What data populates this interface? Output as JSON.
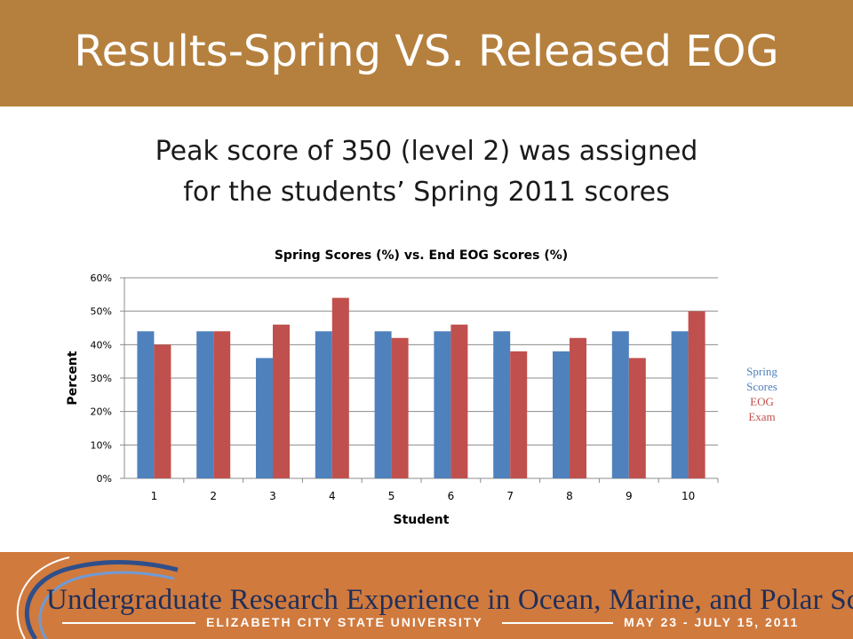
{
  "slide": {
    "title": "Results-Spring VS. Released EOG",
    "subtitle_line1": "Peak score of 350 (level 2) was assigned",
    "subtitle_line2": "for the students’ Spring 2011 scores"
  },
  "legend": {
    "series1_line1": "Spring",
    "series1_line2": "Scores",
    "series2_line1": "EOG",
    "series2_line2": "Exam"
  },
  "footer": {
    "program": "Undergraduate Research Experience in Ocean, Marine, and Polar Science",
    "university": "ELIZABETH CITY STATE UNIVERSITY",
    "dates": "MAY 23 - JULY 15, 2011"
  },
  "colors": {
    "series1": "#4f81bd",
    "series2": "#c0504d",
    "title_bar": "#b5803e",
    "footer": "#d07a3e"
  },
  "chart_data": {
    "type": "bar",
    "title": "Spring Scores (%) vs. End EOG Scores (%)",
    "xlabel": "Student",
    "ylabel": "Percent",
    "categories": [
      "1",
      "2",
      "3",
      "4",
      "5",
      "6",
      "7",
      "8",
      "9",
      "10"
    ],
    "series": [
      {
        "name": "Spring Scores",
        "values": [
          44,
          44,
          36,
          44,
          44,
          44,
          44,
          38,
          44,
          44
        ]
      },
      {
        "name": "EOG Exam",
        "values": [
          40,
          44,
          46,
          54,
          42,
          46,
          38,
          42,
          36,
          50
        ]
      }
    ],
    "ylim": [
      0,
      60
    ],
    "yticks": [
      "0%",
      "10%",
      "20%",
      "30%",
      "40%",
      "50%",
      "60%"
    ],
    "grid": true,
    "legend_position": "right"
  }
}
